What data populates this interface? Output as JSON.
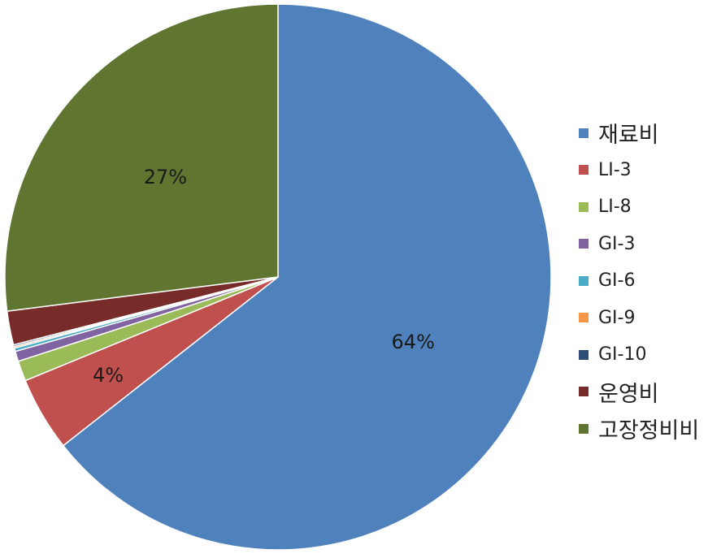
{
  "chart_data": {
    "type": "pie",
    "title": "",
    "categories": [
      "재료비",
      "LI-3",
      "LI-8",
      "GI-3",
      "GI-6",
      "GI-9",
      "GI-10",
      "운영비",
      "고장정비비"
    ],
    "values": [
      64.4,
      4.4,
      1.2,
      0.6,
      0.2,
      0.1,
      0.1,
      2.0,
      27.0
    ],
    "colors": [
      "#4F81BD",
      "#C0504D",
      "#9BBB59",
      "#8064A2",
      "#4BACC6",
      "#F79646",
      "#2C4D75",
      "#772C2A",
      "#5F7530"
    ],
    "data_labels": [
      "64%",
      "4%",
      "",
      "",
      "",
      "",
      "",
      "",
      "27%"
    ],
    "legend_placement": "right"
  }
}
